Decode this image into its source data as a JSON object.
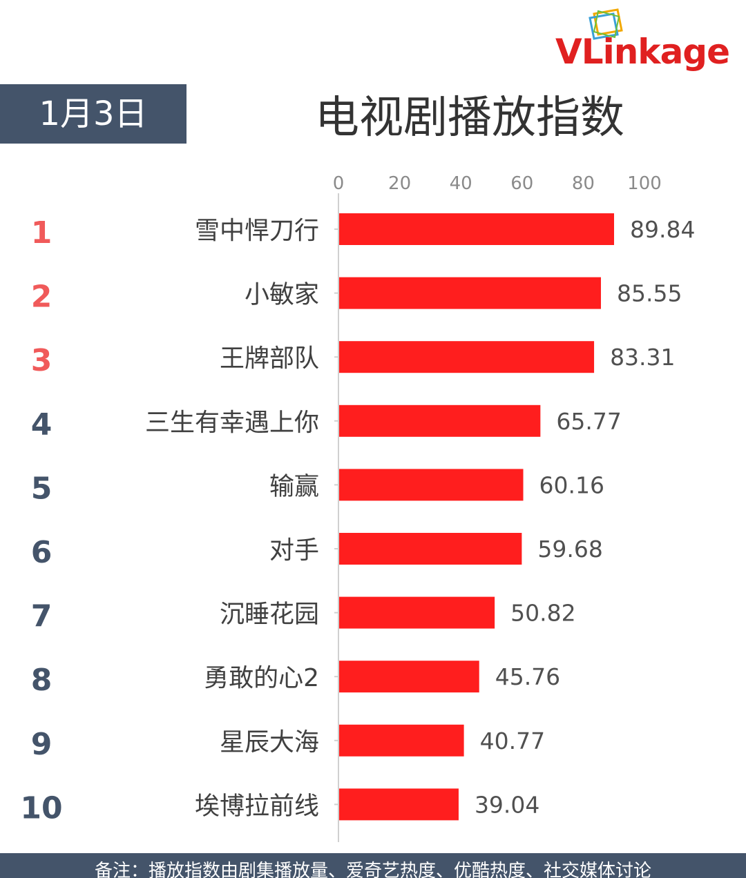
{
  "brand": {
    "logo_text_prefix": "VL",
    "logo_text_suffix": "ink",
    "logo_text_rest": "age",
    "accent": "#e02020"
  },
  "header": {
    "date": "1月3日",
    "title": "电视剧播放指数"
  },
  "colors": {
    "bar": "#ff1e1e",
    "rank_top": "#f05a5a",
    "rank_other": "#44546a",
    "banner": "#44546a"
  },
  "chart_data": {
    "type": "bar",
    "orientation": "horizontal",
    "x_ticks": [
      0,
      20,
      40,
      60,
      80,
      100
    ],
    "xlim": [
      0,
      100
    ],
    "ranks": [
      "1",
      "2",
      "3",
      "4",
      "5",
      "6",
      "7",
      "8",
      "9",
      "10"
    ],
    "categories": [
      "雪中悍刀行",
      "小敏家",
      "王牌部队",
      "三生有幸遇上你",
      "输赢",
      "对手",
      "沉睡花园",
      "勇敢的心2",
      "星辰大海",
      "埃博拉前线"
    ],
    "values": [
      89.84,
      85.55,
      83.31,
      65.77,
      60.16,
      59.68,
      50.82,
      45.76,
      40.77,
      39.04
    ],
    "value_labels": [
      "89.84",
      "85.55",
      "83.31",
      "65.77",
      "60.16",
      "59.68",
      "50.82",
      "45.76",
      "40.77",
      "39.04"
    ]
  },
  "footer": {
    "note": "备注：播放指数由剧集播放量、爱奇艺热度、优酷热度、社交媒体讨论"
  }
}
